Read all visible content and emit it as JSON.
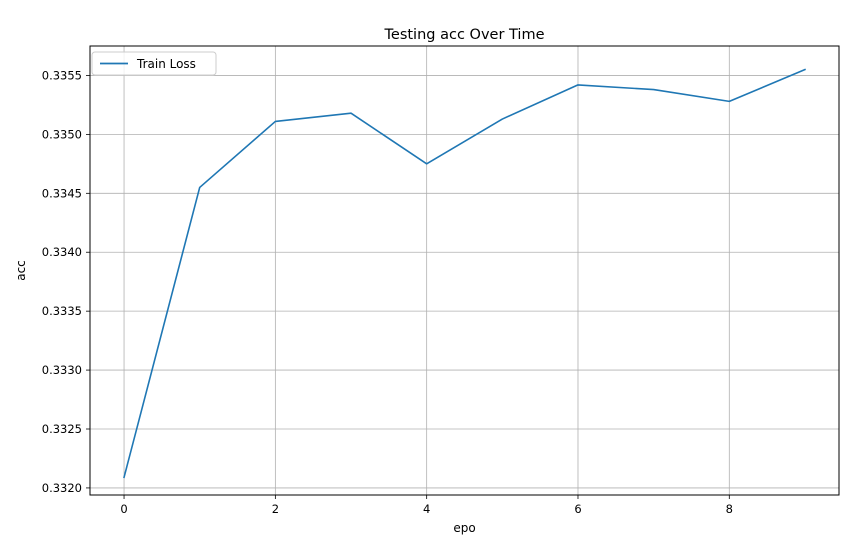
{
  "chart_data": {
    "type": "line",
    "title": "Testing acc Over Time",
    "xlabel": "epo",
    "ylabel": "acc",
    "xlim": [
      -0.45,
      9.45
    ],
    "ylim": [
      0.33194,
      0.33575
    ],
    "xticks": [
      0,
      2,
      4,
      6,
      8
    ],
    "xtick_labels": [
      "0",
      "2",
      "4",
      "6",
      "8"
    ],
    "yticks": [
      0.332,
      0.3325,
      0.333,
      0.3335,
      0.334,
      0.3345,
      0.335,
      0.3355
    ],
    "ytick_labels": [
      "0.3320",
      "0.3325",
      "0.3330",
      "0.3335",
      "0.3340",
      "0.3345",
      "0.3350",
      "0.3355"
    ],
    "grid": true,
    "legend_position": "top-left",
    "series": [
      {
        "name": "Train Loss",
        "color": "#1f77b4",
        "x": [
          0,
          1,
          2,
          3,
          4,
          5,
          6,
          7,
          8,
          9
        ],
        "y": [
          0.33209,
          0.33455,
          0.33511,
          0.33518,
          0.33475,
          0.33513,
          0.33542,
          0.33538,
          0.33528,
          0.33555
        ]
      }
    ]
  }
}
